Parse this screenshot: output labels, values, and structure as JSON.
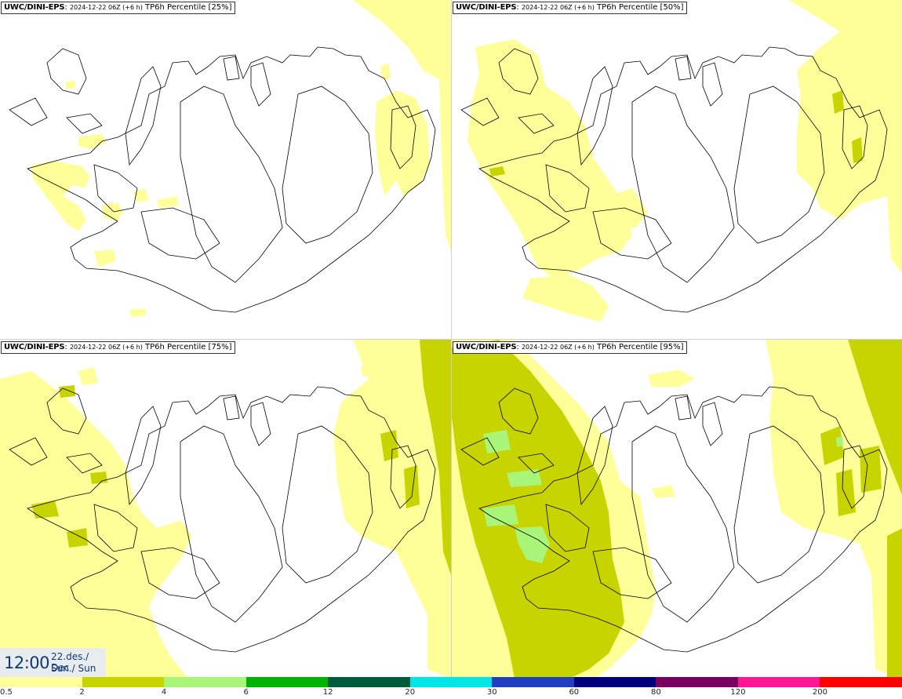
{
  "panels": [
    {
      "model": "UWC/DINI-EPS",
      "run": "2024-12-22 06Z (+6 h)",
      "product": "TP6h Percentile [25%]"
    },
    {
      "model": "UWC/DINI-EPS",
      "run": "2024-12-22 06Z (+6 h)",
      "product": "TP6h Percentile [50%]"
    },
    {
      "model": "UWC/DINI-EPS",
      "run": "2024-12-22 06Z (+6 h)",
      "product": "TP6h Percentile [75%]"
    },
    {
      "model": "UWC/DINI-EPS",
      "run": "2024-12-22 06Z (+6 h)",
      "product": "TP6h Percentile [95%]"
    }
  ],
  "time": {
    "clock": "12:00",
    "date_line1": "22.des./ Dec",
    "date_line2": "Sun./ Sun"
  },
  "legend": {
    "colors": [
      "#ffff99",
      "#c8d400",
      "#a8f57a",
      "#00b300",
      "#005c3a",
      "#00e6e6",
      "#1f3fbf",
      "#00007a",
      "#7a0060",
      "#ff1493",
      "#ff0000"
    ],
    "ticks": [
      "0.5",
      "2",
      "4",
      "6",
      "12",
      "20",
      "30",
      "60",
      "80",
      "120",
      "200"
    ]
  },
  "map_layers": {
    "level1_color": "#ffff99",
    "level2_color": "#c8d400",
    "level3_color": "#a8f57a",
    "coastline_color": "#000000"
  }
}
